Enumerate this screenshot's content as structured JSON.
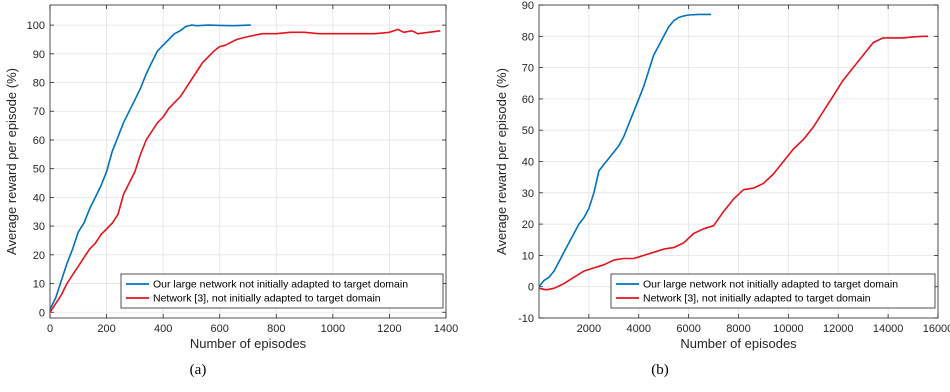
{
  "chart_data": [
    {
      "type": "line",
      "caption": "(a)",
      "xlabel": "Number of episodes",
      "ylabel": "Average reward per episode (%)",
      "xlim": [
        0,
        1400
      ],
      "ylim": [
        -2,
        107
      ],
      "xticks": [
        0,
        200,
        400,
        600,
        800,
        1000,
        1200,
        1400
      ],
      "xtick_labels": [
        "0",
        "200",
        "400",
        "600",
        "800",
        "1000",
        "1200",
        "1400"
      ],
      "yticks": [
        0,
        10,
        20,
        30,
        40,
        50,
        60,
        70,
        80,
        90,
        100
      ],
      "ytick_labels": [
        "0",
        "10",
        "20",
        "30",
        "40",
        "50",
        "60",
        "70",
        "80",
        "90",
        "100"
      ],
      "grid": true,
      "legend_position": "bottom-right",
      "series": [
        {
          "name": "Our large network not initially adapted to target domain",
          "color": "#0072BD",
          "x": [
            0,
            20,
            40,
            60,
            80,
            100,
            120,
            140,
            160,
            180,
            200,
            220,
            240,
            260,
            280,
            300,
            320,
            340,
            360,
            380,
            400,
            420,
            440,
            460,
            480,
            500,
            520,
            560,
            600,
            650,
            710
          ],
          "y": [
            1,
            5,
            11,
            17,
            22,
            28,
            31,
            36,
            40,
            44,
            49,
            56,
            61,
            66,
            70,
            74,
            78,
            83,
            87,
            91,
            93,
            95,
            97,
            98,
            99.5,
            100,
            99.8,
            100,
            99.9,
            99.8,
            100
          ]
        },
        {
          "name": "Network [3], not initially adapted to target domain",
          "color": "#E4141B",
          "x": [
            0,
            20,
            40,
            60,
            80,
            100,
            120,
            140,
            160,
            180,
            200,
            220,
            240,
            260,
            280,
            300,
            320,
            340,
            360,
            380,
            400,
            420,
            440,
            460,
            480,
            500,
            520,
            540,
            560,
            580,
            600,
            620,
            640,
            660,
            680,
            700,
            750,
            800,
            850,
            900,
            950,
            1000,
            1050,
            1100,
            1150,
            1200,
            1230,
            1250,
            1280,
            1300,
            1340,
            1380
          ],
          "y": [
            0,
            3,
            6,
            10,
            13,
            16,
            19,
            22,
            24,
            27,
            29,
            31,
            34,
            41,
            45,
            49,
            55,
            60,
            63,
            66,
            68,
            71,
            73,
            75,
            78,
            81,
            84,
            87,
            89,
            91,
            92.5,
            93,
            94,
            95,
            95.5,
            96,
            97,
            97,
            97.5,
            97.5,
            97,
            97,
            97,
            97,
            97,
            97.5,
            98.5,
            97.5,
            98,
            97,
            97.5,
            98
          ]
        }
      ]
    },
    {
      "type": "line",
      "caption": "(b)",
      "xlabel": "Number of episodes",
      "ylabel": "Average reward per episode (%)",
      "xlim": [
        0,
        16000
      ],
      "ylim": [
        -10,
        90
      ],
      "xticks": [
        2000,
        4000,
        6000,
        8000,
        10000,
        12000,
        14000,
        16000
      ],
      "xtick_labels": [
        "2000",
        "4000",
        "6000",
        "8000",
        "10000",
        "12000",
        "14000",
        "16000"
      ],
      "yticks": [
        -10,
        0,
        10,
        20,
        30,
        40,
        50,
        60,
        70,
        80,
        90
      ],
      "ytick_labels": [
        "-10",
        "0",
        "10",
        "20",
        "30",
        "40",
        "50",
        "60",
        "70",
        "80",
        "90"
      ],
      "grid": true,
      "legend_position": "bottom-right",
      "series": [
        {
          "name": "Our large network not initially adapted to target domain",
          "color": "#0072BD",
          "x": [
            0,
            200,
            400,
            600,
            800,
            1000,
            1200,
            1400,
            1600,
            1800,
            2000,
            2200,
            2400,
            2600,
            2800,
            3000,
            3200,
            3400,
            3600,
            3800,
            4000,
            4200,
            4400,
            4600,
            4800,
            5000,
            5200,
            5400,
            5600,
            5800,
            6000,
            6400,
            6900
          ],
          "y": [
            0,
            2,
            3,
            5,
            8,
            11,
            14,
            17,
            20,
            22,
            25,
            30,
            37,
            39,
            41,
            43,
            45,
            48,
            52,
            56,
            60,
            64,
            69,
            74,
            77,
            80,
            83,
            85,
            86,
            86.5,
            86.8,
            87,
            87
          ]
        },
        {
          "name": "Network [3], not initially adapted to target domain",
          "color": "#E4141B",
          "x": [
            0,
            300,
            600,
            1000,
            1400,
            1800,
            2200,
            2600,
            3000,
            3400,
            3800,
            4200,
            4600,
            5000,
            5400,
            5800,
            6200,
            6600,
            7000,
            7400,
            7800,
            8200,
            8600,
            9000,
            9400,
            9800,
            10200,
            10600,
            11000,
            11400,
            11800,
            12200,
            12600,
            13000,
            13400,
            13800,
            14200,
            14600,
            15000,
            15400,
            15600
          ],
          "y": [
            -0.5,
            -1,
            -0.5,
            1,
            3,
            5,
            6,
            7,
            8.5,
            9,
            9,
            10,
            11,
            12,
            12.5,
            14,
            17,
            18.5,
            19.5,
            24,
            28,
            31,
            31.5,
            33,
            36,
            40,
            44,
            47,
            51,
            56,
            61,
            66,
            70,
            74,
            78,
            79.5,
            79.5,
            79.5,
            79.8,
            80,
            80
          ]
        }
      ]
    }
  ]
}
